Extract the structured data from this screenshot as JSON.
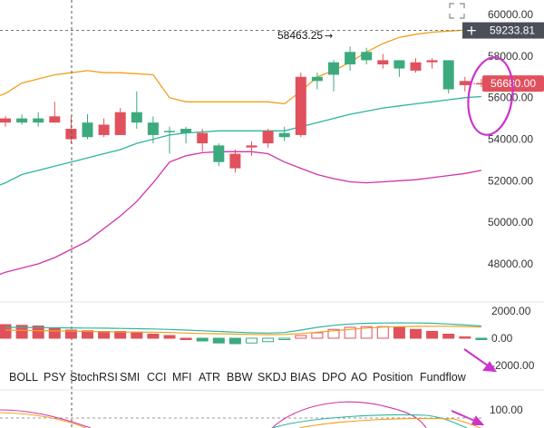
{
  "chart_data": {
    "type": "candlestick",
    "price_axis": {
      "ticks": [
        60000,
        58000,
        56000,
        54000,
        52000,
        50000,
        48000
      ],
      "tick_labels": [
        "60000.00",
        "58000.00",
        "56000.00",
        "54000.00",
        "52000.00",
        "50000.00",
        "48000.00"
      ]
    },
    "crosshair": {
      "price_label": "59233.81",
      "price": 59233.81
    },
    "current_price": {
      "label": "56680.00",
      "value": 56680,
      "color": "#e0515d"
    },
    "high_annotation": {
      "label": "58463.25",
      "value": 58463.25
    },
    "colors": {
      "up": "#3daa7e",
      "down": "#e0515d",
      "upper_band": "#f0a01a",
      "middle_band": "#2eb5a0",
      "lower_band": "#d233a6",
      "annotation_marker": "#cc33cc",
      "arrow": "#cc33cc"
    },
    "candles": [
      {
        "o": 55000,
        "h": 55100,
        "l": 54600,
        "c": 54800
      },
      {
        "o": 54800,
        "h": 55200,
        "l": 54700,
        "c": 55000
      },
      {
        "o": 54800,
        "h": 55300,
        "l": 54600,
        "c": 55000
      },
      {
        "o": 55100,
        "h": 55800,
        "l": 54800,
        "c": 54800
      },
      {
        "o": 54500,
        "h": 55100,
        "l": 53800,
        "c": 54000
      },
      {
        "o": 54100,
        "h": 55200,
        "l": 54000,
        "c": 54800
      },
      {
        "o": 54700,
        "h": 55000,
        "l": 54100,
        "c": 54200
      },
      {
        "o": 55300,
        "h": 55500,
        "l": 54200,
        "c": 54200
      },
      {
        "o": 54800,
        "h": 56300,
        "l": 54500,
        "c": 55300
      },
      {
        "o": 54200,
        "h": 55100,
        "l": 53800,
        "c": 54800
      },
      {
        "o": 54400,
        "h": 54600,
        "l": 53300,
        "c": 54400
      },
      {
        "o": 54300,
        "h": 54600,
        "l": 53800,
        "c": 54500
      },
      {
        "o": 54300,
        "h": 54500,
        "l": 53400,
        "c": 53800
      },
      {
        "o": 52900,
        "h": 53800,
        "l": 52700,
        "c": 53700
      },
      {
        "o": 53300,
        "h": 53500,
        "l": 52400,
        "c": 52600
      },
      {
        "o": 53700,
        "h": 53900,
        "l": 53200,
        "c": 53600
      },
      {
        "o": 54400,
        "h": 54500,
        "l": 53600,
        "c": 53800
      },
      {
        "o": 54100,
        "h": 54600,
        "l": 53900,
        "c": 54300
      },
      {
        "o": 57000,
        "h": 57200,
        "l": 54100,
        "c": 54200
      },
      {
        "o": 56800,
        "h": 57200,
        "l": 56400,
        "c": 57000
      },
      {
        "o": 57100,
        "h": 57800,
        "l": 56300,
        "c": 57700
      },
      {
        "o": 57600,
        "h": 58463.25,
        "l": 57300,
        "c": 58200
      },
      {
        "o": 57800,
        "h": 58400,
        "l": 57600,
        "c": 58200
      },
      {
        "o": 57800,
        "h": 58100,
        "l": 57400,
        "c": 57600
      },
      {
        "o": 57400,
        "h": 57800,
        "l": 57000,
        "c": 57800
      },
      {
        "o": 57700,
        "h": 57900,
        "l": 57200,
        "c": 57300
      },
      {
        "o": 57800,
        "h": 57900,
        "l": 57400,
        "c": 57700
      },
      {
        "o": 56400,
        "h": 57800,
        "l": 56200,
        "c": 57800
      },
      {
        "o": 56800,
        "h": 57000,
        "l": 56300,
        "c": 56600
      },
      {
        "o": 56700,
        "h": 56900,
        "l": 56500,
        "c": 56680
      }
    ],
    "bands": {
      "upper": [
        56200,
        56700,
        56900,
        57100,
        57200,
        57300,
        57200,
        57200,
        57150,
        57100,
        56000,
        55800,
        55800,
        55800,
        55800,
        55800,
        55800,
        55700,
        56300,
        57000,
        57300,
        57700,
        58200,
        58600,
        58900,
        59050,
        59150,
        59200,
        59250,
        59300
      ],
      "middle": [
        51900,
        52300,
        52500,
        52700,
        52900,
        53100,
        53300,
        53500,
        53800,
        54000,
        54200,
        54300,
        54350,
        54400,
        54400,
        54400,
        54400,
        54400,
        54600,
        54800,
        55000,
        55200,
        55350,
        55500,
        55600,
        55700,
        55800,
        55900,
        56000,
        56050
      ],
      "lower": [
        47600,
        47800,
        48000,
        48300,
        48700,
        49100,
        49700,
        50300,
        51000,
        51900,
        52900,
        53200,
        53350,
        53400,
        53400,
        53400,
        53300,
        52900,
        52600,
        52300,
        52100,
        51950,
        51900,
        51950,
        52000,
        52050,
        52150,
        52250,
        52350,
        52500
      ]
    },
    "ao_axis": {
      "tick_labels": [
        "2000.00",
        "0.00",
        "-2000.00"
      ],
      "ticks": [
        2000,
        0,
        -2000
      ]
    },
    "ao_bars": [
      1000,
      950,
      900,
      700,
      600,
      550,
      500,
      500,
      450,
      300,
      200,
      0,
      -200,
      -350,
      -400,
      -350,
      -250,
      -100,
      200,
      400,
      650,
      800,
      850,
      850,
      800,
      650,
      500,
      300,
      100,
      -50
    ],
    "ao_lines": {
      "orange": [
        600,
        580,
        560,
        540,
        520,
        500,
        480,
        460,
        450,
        440,
        420,
        380,
        350,
        330,
        300,
        280,
        260,
        280,
        350,
        450,
        550,
        650,
        750,
        820,
        850,
        870,
        880,
        880,
        860,
        820
      ],
      "teal": [
        800,
        790,
        780,
        770,
        760,
        750,
        740,
        720,
        700,
        680,
        650,
        600,
        550,
        500,
        450,
        400,
        380,
        420,
        600,
        800,
        950,
        1050,
        1100,
        1120,
        1130,
        1120,
        1100,
        1050,
        980,
        900
      ]
    },
    "lower_axis": {
      "tick_labels": [
        "100.00"
      ],
      "ticks": [
        100
      ]
    }
  },
  "toolbar": {
    "indicators": [
      {
        "label": "BOLL"
      },
      {
        "label": "PSY"
      },
      {
        "label": "StochRSI"
      },
      {
        "label": "SMI"
      },
      {
        "label": "CCI"
      },
      {
        "label": "MFI"
      },
      {
        "label": "ATR"
      },
      {
        "label": "BBW"
      },
      {
        "label": "SKDJ"
      },
      {
        "label": "BIAS"
      },
      {
        "label": "DPO"
      },
      {
        "label": "AO"
      },
      {
        "label": "Position"
      },
      {
        "label": "Fundflow"
      }
    ]
  },
  "icons": {
    "expand": "expand-icon",
    "add": "plus-icon"
  }
}
